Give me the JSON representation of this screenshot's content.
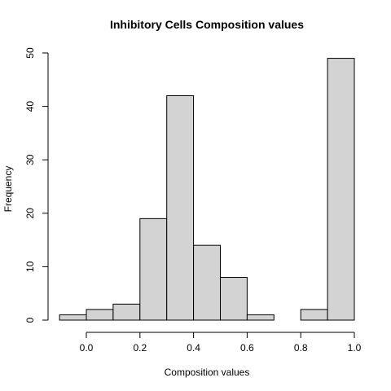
{
  "chart_data": {
    "type": "bar",
    "title": "Inhibitory Cells Composition values",
    "xlabel": "Composition values",
    "ylabel": "Frequency",
    "bins": [
      {
        "from": -0.1,
        "to": 0.0,
        "count": 1
      },
      {
        "from": 0.0,
        "to": 0.1,
        "count": 2
      },
      {
        "from": 0.1,
        "to": 0.2,
        "count": 3
      },
      {
        "from": 0.2,
        "to": 0.3,
        "count": 19
      },
      {
        "from": 0.3,
        "to": 0.4,
        "count": 42
      },
      {
        "from": 0.4,
        "to": 0.5,
        "count": 14
      },
      {
        "from": 0.5,
        "to": 0.6,
        "count": 8
      },
      {
        "from": 0.6,
        "to": 0.7,
        "count": 1
      },
      {
        "from": 0.7,
        "to": 0.8,
        "count": 0
      },
      {
        "from": 0.8,
        "to": 0.9,
        "count": 2
      },
      {
        "from": 0.9,
        "to": 1.0,
        "count": 49
      }
    ],
    "xlim": [
      -0.1,
      1.0
    ],
    "ylim": [
      0,
      50
    ],
    "xticks": [
      "0.0",
      "0.2",
      "0.4",
      "0.6",
      "0.8",
      "1.0"
    ],
    "yticks": [
      "0",
      "10",
      "20",
      "30",
      "40",
      "50"
    ],
    "colors": {
      "bar_fill": "#d3d3d3",
      "bar_stroke": "#000000"
    },
    "grid": false
  }
}
